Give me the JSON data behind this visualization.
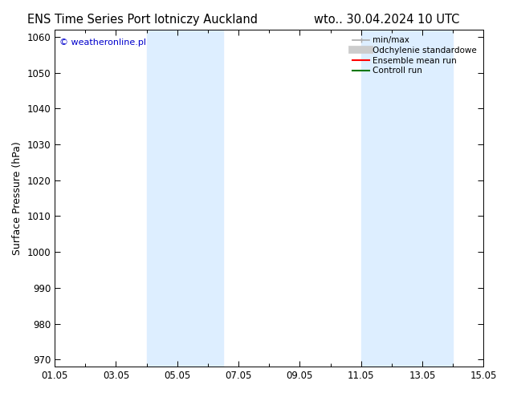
{
  "title_left": "ENS Time Series Port lotniczy Auckland",
  "title_right": "wto.. 30.04.2024 10 UTC",
  "ylabel": "Surface Pressure (hPa)",
  "ylim": [
    968,
    1062
  ],
  "yticks": [
    970,
    980,
    990,
    1000,
    1010,
    1020,
    1030,
    1040,
    1050,
    1060
  ],
  "xtick_labels": [
    "01.05",
    "03.05",
    "05.05",
    "07.05",
    "09.05",
    "11.05",
    "13.05",
    "15.05"
  ],
  "xtick_positions": [
    0,
    2,
    4,
    6,
    8,
    10,
    12,
    14
  ],
  "xlim": [
    0,
    14
  ],
  "shade_bands": [
    {
      "start": 3.0,
      "end": 5.5,
      "color": "#ddeeff",
      "alpha": 1.0
    },
    {
      "start": 10.0,
      "end": 11.5,
      "color": "#ddeeff",
      "alpha": 1.0
    },
    {
      "start": 11.5,
      "end": 13.0,
      "color": "#ddeeff",
      "alpha": 1.0
    }
  ],
  "copyright_text": "© weatheronline.pl",
  "copyright_color": "#0000cc",
  "legend_items": [
    {
      "label": "min/max",
      "color": "#aaaaaa",
      "lw": 1.2
    },
    {
      "label": "Odchylenie standardowe",
      "color": "#cccccc",
      "lw": 7
    },
    {
      "label": "Ensemble mean run",
      "color": "#ff0000",
      "lw": 1.5
    },
    {
      "label": "Controll run",
      "color": "#007700",
      "lw": 1.5
    }
  ],
  "background_color": "#ffffff",
  "title_fontsize": 10.5,
  "axis_fontsize": 9,
  "tick_fontsize": 8.5,
  "minor_xtick_positions": [
    1,
    3,
    5,
    7,
    9,
    11,
    13
  ]
}
